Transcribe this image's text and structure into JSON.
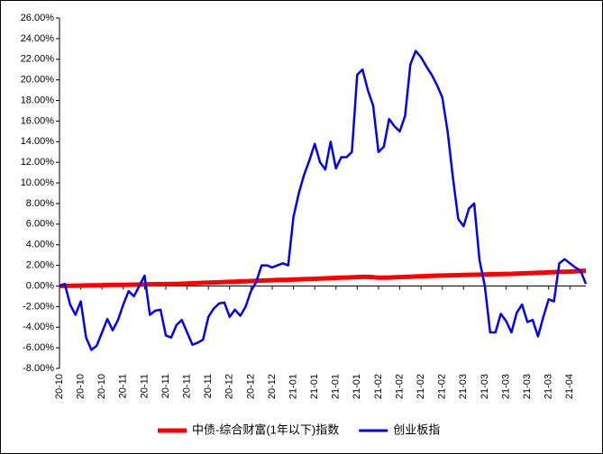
{
  "chart_data": {
    "type": "line",
    "categories": [
      "20-10",
      null,
      null,
      null,
      "20-10",
      null,
      null,
      null,
      "20-10",
      null,
      null,
      null,
      "20-11",
      null,
      null,
      null,
      "20-11",
      null,
      null,
      null,
      "20-11",
      null,
      null,
      null,
      "20-11",
      null,
      null,
      null,
      "20-11",
      null,
      null,
      null,
      "20-12",
      null,
      null,
      null,
      "20-12",
      null,
      null,
      null,
      "20-12",
      null,
      null,
      null,
      "21-01",
      null,
      null,
      null,
      "21-01",
      null,
      null,
      null,
      "21-01",
      null,
      null,
      null,
      "21-01",
      null,
      null,
      null,
      "21-02",
      null,
      null,
      null,
      "21-02",
      null,
      null,
      null,
      "21-02",
      null,
      null,
      null,
      "21-02",
      null,
      null,
      null,
      "21-03",
      null,
      null,
      null,
      "21-03",
      null,
      null,
      null,
      "21-03",
      null,
      null,
      null,
      "21-03",
      null,
      null,
      null,
      "21-03",
      null,
      null,
      null,
      "21-04",
      null,
      null,
      null
    ],
    "series": [
      {
        "name": "中债-综合财富(1年以下)指数",
        "color": "#ff0000",
        "values": [
          0,
          0.01,
          0.02,
          0.03,
          0.04,
          0.05,
          0.06,
          0.07,
          0.08,
          0.09,
          0.1,
          0.1,
          0.11,
          0.12,
          0.13,
          0.14,
          0.15,
          0.16,
          0.17,
          0.18,
          0.18,
          0.19,
          0.2,
          0.22,
          0.24,
          0.26,
          0.28,
          0.3,
          0.32,
          0.34,
          0.36,
          0.38,
          0.4,
          0.42,
          0.44,
          0.46,
          0.48,
          0.5,
          0.52,
          0.54,
          0.56,
          0.58,
          0.59,
          0.6,
          0.62,
          0.64,
          0.66,
          0.68,
          0.7,
          0.72,
          0.74,
          0.76,
          0.78,
          0.8,
          0.82,
          0.84,
          0.86,
          0.88,
          0.88,
          0.85,
          0.8,
          0.8,
          0.82,
          0.84,
          0.86,
          0.88,
          0.9,
          0.92,
          0.94,
          0.96,
          0.98,
          1.0,
          1.01,
          1.02,
          1.04,
          1.05,
          1.06,
          1.08,
          1.09,
          1.1,
          1.12,
          1.13,
          1.14,
          1.16,
          1.17,
          1.18,
          1.2,
          1.22,
          1.24,
          1.26,
          1.28,
          1.3,
          1.32,
          1.34,
          1.36,
          1.38,
          1.4,
          1.42,
          1.45,
          1.48
        ]
      },
      {
        "name": "创业板指",
        "color": "#0000ff",
        "values": [
          0,
          0.2,
          -1.8,
          -2.8,
          -1.5,
          -5,
          -6.2,
          -5.8,
          -4.5,
          -3.2,
          -4.3,
          -3.3,
          -1.8,
          -0.5,
          -1,
          0,
          1,
          -2.8,
          -2.4,
          -2.3,
          -4.8,
          -5,
          -3.8,
          -3.3,
          -4.5,
          -5.7,
          -5.5,
          -5.2,
          -3,
          -2.2,
          -1.7,
          -1.6,
          -3,
          -2.3,
          -2.9,
          -2,
          -0.5,
          0.4,
          2,
          2,
          1.8,
          2,
          2.2,
          2,
          6.7,
          9,
          10.8,
          12.2,
          13.8,
          12,
          11.3,
          14,
          11.4,
          12.5,
          12.5,
          13,
          20.5,
          21,
          19,
          17.5,
          13,
          13.5,
          16.2,
          15.5,
          15,
          16.5,
          21.5,
          22.8,
          22.2,
          21.3,
          20.5,
          19.5,
          18.3,
          15,
          10.5,
          6.5,
          5.8,
          7.5,
          8,
          2.5,
          0,
          -4.5,
          -4.5,
          -2.7,
          -3.4,
          -4.5,
          -2.6,
          -1.8,
          -3.5,
          -3.3,
          -4.9,
          -3,
          -1.3,
          -1.5,
          2.2,
          2.6,
          2.2,
          1.8,
          1.5,
          0.2
        ]
      }
    ],
    "ylim": [
      -8,
      26
    ],
    "yticks": [
      {
        "value": -8,
        "label": "-8.00%"
      },
      {
        "value": -6,
        "label": "-6.00%"
      },
      {
        "value": -4,
        "label": "-4.00%"
      },
      {
        "value": -2,
        "label": "-2.00%"
      },
      {
        "value": 0,
        "label": "0.00%"
      },
      {
        "value": 2,
        "label": "2.00%"
      },
      {
        "value": 4,
        "label": "4.00%"
      },
      {
        "value": 6,
        "label": "6.00%"
      },
      {
        "value": 8,
        "label": "8.00%"
      },
      {
        "value": 10,
        "label": "10.00%"
      },
      {
        "value": 12,
        "label": "12.00%"
      },
      {
        "value": 14,
        "label": "14.00%"
      },
      {
        "value": 16,
        "label": "16.00%"
      },
      {
        "value": 18,
        "label": "18.00%"
      },
      {
        "value": 20,
        "label": "20.00%"
      },
      {
        "value": 22,
        "label": "22.00%"
      },
      {
        "value": 24,
        "label": "24.00%"
      },
      {
        "value": 26,
        "label": "26.00%"
      }
    ],
    "grid": false,
    "legend": "bottom"
  }
}
